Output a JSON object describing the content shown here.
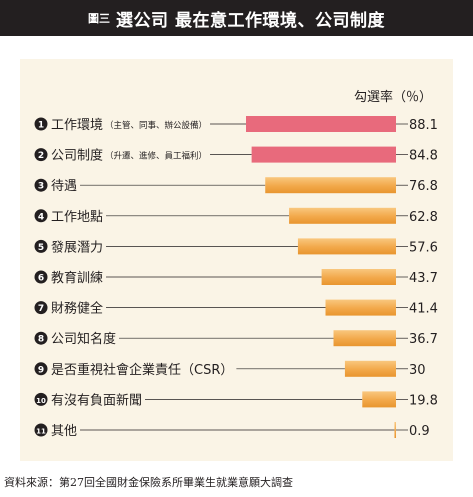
{
  "header": {
    "figure_tag": "圖三",
    "title": "選公司 最在意工作環境、公司制度"
  },
  "source": "資料來源：第27回全國財金保險系所畢業生就業意願大調查",
  "colors": {
    "header_bg": "#231f20",
    "panel_bg": "#faf4e6",
    "highlight": "#e86a7c",
    "bar": "#f2a84a",
    "leader": "#231f20"
  },
  "chart_data": {
    "type": "bar",
    "orientation": "horizontal",
    "value_label": "勾選率（％）",
    "categories": [
      {
        "num": "1",
        "label": "工作環境",
        "note": "（主管、同事、辦公設備）"
      },
      {
        "num": "2",
        "label": "公司制度",
        "note": "（升遷、進修、員工福利）"
      },
      {
        "num": "3",
        "label": "待遇",
        "note": ""
      },
      {
        "num": "4",
        "label": "工作地點",
        "note": ""
      },
      {
        "num": "5",
        "label": "發展潛力",
        "note": ""
      },
      {
        "num": "6",
        "label": "教育訓練",
        "note": ""
      },
      {
        "num": "7",
        "label": "財務健全",
        "note": ""
      },
      {
        "num": "8",
        "label": "公司知名度",
        "note": ""
      },
      {
        "num": "9",
        "label": "是否重視社會企業責任（CSR）",
        "note": ""
      },
      {
        "num": "10",
        "label": "有沒有負面新聞",
        "note": ""
      },
      {
        "num": "11",
        "label": "其他",
        "note": ""
      }
    ],
    "values": [
      88.1,
      84.8,
      76.8,
      62.8,
      57.6,
      43.7,
      41.4,
      36.7,
      30,
      19.8,
      0.9
    ],
    "value_labels": [
      "88.1",
      "84.8",
      "76.8",
      "62.8",
      "57.6",
      "43.7",
      "41.4",
      "36.7",
      "30",
      "19.8",
      "0.9"
    ],
    "highlight_count": 2,
    "xlim": [
      0,
      100
    ],
    "grid": false,
    "legend": "none"
  }
}
